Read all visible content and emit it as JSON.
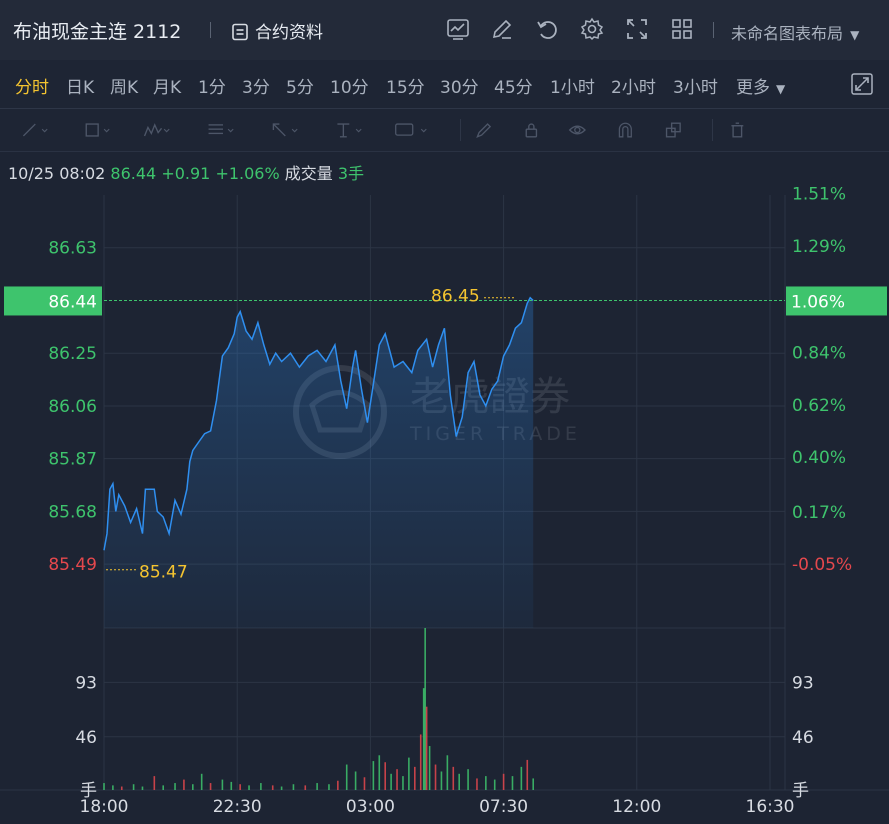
{
  "header": {
    "title": "布油现金主连 2112",
    "contract_label": "合约资料",
    "layout_label": "未命名图表布局",
    "icons": [
      "indicator-icon",
      "draw-edit-icon",
      "undo-icon",
      "settings-icon",
      "fullscreen-icon",
      "grid-layout-icon"
    ]
  },
  "periods": {
    "items": [
      "分时",
      "日K",
      "周K",
      "月K",
      "1分",
      "3分",
      "5分",
      "10分",
      "15分",
      "30分",
      "45分",
      "1小时",
      "2小时",
      "3小时",
      "更多"
    ],
    "active": "分时"
  },
  "drawing_tools": [
    "line-tool-icon",
    "rectangle-tool-icon",
    "pattern-tool-icon",
    "fib-tool-icon",
    "arrow-tool-icon",
    "text-tool-icon",
    "price-label-tool-icon",
    "brush-icon",
    "lock-icon",
    "eye-icon",
    "magnet-icon",
    "layers-icon",
    "trash-icon"
  ],
  "info": {
    "time": "10/25 08:02",
    "price": "86.44",
    "change": "+0.91",
    "change_pct": "+1.06%",
    "volume_label": "成交量",
    "volume": "3手"
  },
  "colors": {
    "up": "#3ec46d",
    "down": "#e5484d",
    "line": "#2f8ff0",
    "marker": "#f4c430",
    "grid": "#2c3545",
    "bg": "#1d2433"
  },
  "watermark": {
    "cn": "老虎證券",
    "en": "TIGER TRADE"
  },
  "chart_data": {
    "type": "line",
    "current_price": "86.44",
    "current_pct": "1.06%",
    "high_label": "86.45",
    "low_label": "85.47",
    "price_ticks": [
      {
        "value": "86.63",
        "color": "up"
      },
      {
        "value": "86.25",
        "color": "up"
      },
      {
        "value": "86.06",
        "color": "up"
      },
      {
        "value": "85.87",
        "color": "up"
      },
      {
        "value": "85.68",
        "color": "up"
      },
      {
        "value": "85.49",
        "color": "down"
      }
    ],
    "pct_ticks": [
      {
        "value": "1.51%",
        "color": "up"
      },
      {
        "value": "1.29%",
        "color": "up"
      },
      {
        "value": "0.84%",
        "color": "up"
      },
      {
        "value": "0.62%",
        "color": "up"
      },
      {
        "value": "0.40%",
        "color": "up"
      },
      {
        "value": "0.17%",
        "color": "up"
      },
      {
        "value": "-0.05%",
        "color": "down"
      }
    ],
    "price_range": [
      85.26,
      86.82
    ],
    "volume_ticks_left": [
      "93",
      "46",
      "手"
    ],
    "volume_ticks_right": [
      "93",
      "46",
      "手"
    ],
    "volume_range": [
      0,
      140
    ],
    "x_ticks": [
      "18:00",
      "22:30",
      "03:00",
      "07:30",
      "12:00",
      "16:30"
    ],
    "x_tick_hours": [
      0,
      4.5,
      9,
      13.5,
      18,
      22.5
    ],
    "series": [
      {
        "values": [
          [
            0,
            85.54
          ],
          [
            0.1,
            85.6
          ],
          [
            0.2,
            85.76
          ],
          [
            0.3,
            85.78
          ],
          [
            0.4,
            85.68
          ],
          [
            0.5,
            85.74
          ],
          [
            0.7,
            85.7
          ],
          [
            0.9,
            85.64
          ],
          [
            1.1,
            85.69
          ],
          [
            1.3,
            85.6
          ],
          [
            1.4,
            85.76
          ],
          [
            1.7,
            85.76
          ],
          [
            1.8,
            85.68
          ],
          [
            2.0,
            85.66
          ],
          [
            2.2,
            85.6
          ],
          [
            2.4,
            85.72
          ],
          [
            2.6,
            85.67
          ],
          [
            2.8,
            85.76
          ],
          [
            2.9,
            85.86
          ],
          [
            3.0,
            85.9
          ],
          [
            3.2,
            85.93
          ],
          [
            3.4,
            85.96
          ],
          [
            3.6,
            85.97
          ],
          [
            3.8,
            86.08
          ],
          [
            3.9,
            86.16
          ],
          [
            4.0,
            86.24
          ],
          [
            4.2,
            86.27
          ],
          [
            4.4,
            86.32
          ],
          [
            4.5,
            86.38
          ],
          [
            4.6,
            86.4
          ],
          [
            4.8,
            86.33
          ],
          [
            5.0,
            86.3
          ],
          [
            5.2,
            86.36
          ],
          [
            5.4,
            86.28
          ],
          [
            5.6,
            86.21
          ],
          [
            5.8,
            86.25
          ],
          [
            6.0,
            86.22
          ],
          [
            6.3,
            86.25
          ],
          [
            6.6,
            86.2
          ],
          [
            6.9,
            86.24
          ],
          [
            7.2,
            86.26
          ],
          [
            7.5,
            86.22
          ],
          [
            7.8,
            86.28
          ],
          [
            8.0,
            86.15
          ],
          [
            8.2,
            86.05
          ],
          [
            8.4,
            86.2
          ],
          [
            8.5,
            86.26
          ],
          [
            8.7,
            86.12
          ],
          [
            8.9,
            86.0
          ],
          [
            9.1,
            86.14
          ],
          [
            9.3,
            86.28
          ],
          [
            9.5,
            86.32
          ],
          [
            9.8,
            86.2
          ],
          [
            10.1,
            86.22
          ],
          [
            10.4,
            86.18
          ],
          [
            10.6,
            86.26
          ],
          [
            10.9,
            86.3
          ],
          [
            11.1,
            86.2
          ],
          [
            11.3,
            86.28
          ],
          [
            11.5,
            86.34
          ],
          [
            11.7,
            86.1
          ],
          [
            11.9,
            85.95
          ],
          [
            12.1,
            86.02
          ],
          [
            12.3,
            86.18
          ],
          [
            12.5,
            86.22
          ],
          [
            12.7,
            86.1
          ],
          [
            12.9,
            86.06
          ],
          [
            13.1,
            86.12
          ],
          [
            13.3,
            86.15
          ],
          [
            13.5,
            86.24
          ],
          [
            13.7,
            86.28
          ],
          [
            13.9,
            86.34
          ],
          [
            14.1,
            86.36
          ],
          [
            14.3,
            86.43
          ],
          [
            14.4,
            86.45
          ],
          [
            14.5,
            86.44
          ]
        ]
      }
    ],
    "volume": [
      [
        0,
        6,
        "up"
      ],
      [
        0.3,
        4,
        "up"
      ],
      [
        0.6,
        3,
        "down"
      ],
      [
        1.0,
        5,
        "up"
      ],
      [
        1.3,
        3,
        "up"
      ],
      [
        1.7,
        12,
        "down"
      ],
      [
        2.0,
        4,
        "up"
      ],
      [
        2.4,
        6,
        "up"
      ],
      [
        2.7,
        9,
        "down"
      ],
      [
        3.0,
        5,
        "up"
      ],
      [
        3.3,
        14,
        "up"
      ],
      [
        3.6,
        6,
        "down"
      ],
      [
        4.0,
        9,
        "up"
      ],
      [
        4.3,
        7,
        "up"
      ],
      [
        4.6,
        5,
        "down"
      ],
      [
        4.9,
        4,
        "up"
      ],
      [
        5.3,
        6,
        "up"
      ],
      [
        5.7,
        4,
        "down"
      ],
      [
        6.0,
        3,
        "up"
      ],
      [
        6.4,
        5,
        "up"
      ],
      [
        6.8,
        4,
        "down"
      ],
      [
        7.2,
        6,
        "up"
      ],
      [
        7.6,
        5,
        "up"
      ],
      [
        7.9,
        8,
        "down"
      ],
      [
        8.2,
        22,
        "up"
      ],
      [
        8.5,
        16,
        "up"
      ],
      [
        8.8,
        11,
        "down"
      ],
      [
        9.1,
        25,
        "up"
      ],
      [
        9.3,
        30,
        "up"
      ],
      [
        9.5,
        24,
        "down"
      ],
      [
        9.7,
        14,
        "up"
      ],
      [
        9.9,
        18,
        "down"
      ],
      [
        10.1,
        12,
        "up"
      ],
      [
        10.3,
        28,
        "up"
      ],
      [
        10.5,
        20,
        "down"
      ],
      [
        10.7,
        48,
        "down"
      ],
      [
        10.8,
        88,
        "up"
      ],
      [
        10.85,
        140,
        "up"
      ],
      [
        10.9,
        72,
        "down"
      ],
      [
        11.0,
        38,
        "up"
      ],
      [
        11.2,
        22,
        "down"
      ],
      [
        11.4,
        16,
        "up"
      ],
      [
        11.6,
        30,
        "up"
      ],
      [
        11.8,
        20,
        "down"
      ],
      [
        12.0,
        14,
        "up"
      ],
      [
        12.3,
        18,
        "up"
      ],
      [
        12.6,
        10,
        "down"
      ],
      [
        12.9,
        12,
        "up"
      ],
      [
        13.2,
        9,
        "up"
      ],
      [
        13.5,
        14,
        "down"
      ],
      [
        13.8,
        12,
        "up"
      ],
      [
        14.1,
        20,
        "up"
      ],
      [
        14.3,
        26,
        "down"
      ],
      [
        14.5,
        10,
        "up"
      ]
    ]
  }
}
